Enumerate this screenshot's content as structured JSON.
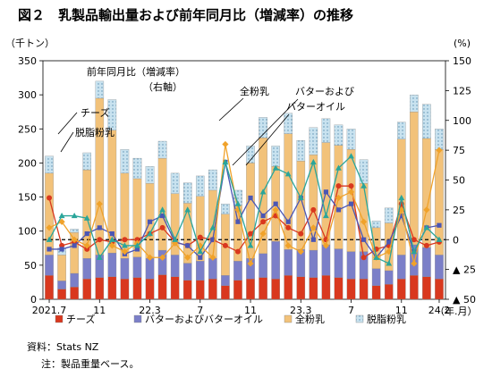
{
  "title": "図２　乳製品輸出量および前年同月比（増減率）の推移",
  "left_unit": "（千トン）",
  "right_unit": "(%)",
  "x_unit": "（年.月）",
  "source": "資料：Stats NZ",
  "note": "注：製品重量ベース。",
  "annotations": {
    "yoy_line1": "前年同月比（増減率）",
    "yoy_line2": "（右軸）",
    "cheese": "チーズ",
    "skim": "脱脂粉乳",
    "whole": "全粉乳",
    "butter1": "バターおよび",
    "butter2": "バターオイル"
  },
  "chart_data": {
    "type": "bar",
    "stacked": true,
    "categories": [
      "2021.7",
      "2021.8",
      "2021.9",
      "2021.10",
      "2021.11",
      "2021.12",
      "2022.1",
      "2022.2",
      "2022.3",
      "2022.4",
      "2022.5",
      "2022.6",
      "2022.7",
      "2022.8",
      "2022.9",
      "2022.10",
      "2022.11",
      "2022.12",
      "2023.1",
      "2023.2",
      "2023.3",
      "2023.4",
      "2023.5",
      "2023.6",
      "2023.7",
      "2023.8",
      "2023.9",
      "2023.10",
      "2023.11",
      "2023.12",
      "2024.1",
      "2024.2"
    ],
    "x_tick_labels": {
      "0": "2021.7",
      "4": "11",
      "8": "22.3",
      "12": "7",
      "16": "11",
      "20": "23.3",
      "24": "7",
      "28": "11",
      "31": "24.2"
    },
    "ylim": [
      0,
      350
    ],
    "yticks": [
      0,
      50,
      100,
      150,
      200,
      250,
      300,
      350
    ],
    "y2lim": [
      -50,
      150
    ],
    "y2ticks": [
      150,
      125,
      100,
      75,
      50,
      25,
      0,
      -25,
      -50
    ],
    "y2tick_labels": [
      "150",
      "125",
      "100",
      "75",
      "50",
      "25",
      "0",
      "▲ 25",
      "▲ 50"
    ],
    "series": [
      {
        "name": "チーズ",
        "color": "#d9381e",
        "values": [
          35,
          15,
          18,
          30,
          32,
          33,
          30,
          32,
          30,
          36,
          33,
          28,
          28,
          30,
          20,
          28,
          30,
          32,
          30,
          35,
          33,
          32,
          35,
          32,
          30,
          30,
          20,
          22,
          30,
          35,
          33,
          30
        ]
      },
      {
        "name": "バターおよびバターオイル",
        "color": "#7b7fc8",
        "values": [
          30,
          12,
          20,
          30,
          33,
          35,
          30,
          30,
          30,
          36,
          32,
          25,
          28,
          30,
          15,
          28,
          30,
          35,
          55,
          38,
          40,
          40,
          45,
          42,
          40,
          40,
          25,
          20,
          35,
          45,
          43,
          35
        ]
      },
      {
        "name": "全粉乳",
        "color": "#f2c27a",
        "values": [
          120,
          38,
          60,
          130,
          230,
          180,
          125,
          115,
          110,
          135,
          90,
          88,
          95,
          100,
          90,
          82,
          140,
          170,
          110,
          170,
          130,
          140,
          150,
          152,
          150,
          100,
          60,
          70,
          170,
          195,
          160,
          155
        ]
      },
      {
        "name": "脱脂粉乳",
        "color": "#c8e2ef",
        "values": [
          25,
          10,
          5,
          25,
          25,
          45,
          35,
          30,
          25,
          25,
          30,
          30,
          30,
          30,
          15,
          22,
          25,
          30,
          30,
          30,
          30,
          40,
          35,
          30,
          30,
          35,
          10,
          22,
          25,
          25,
          50,
          30
        ]
      }
    ],
    "yoy": [
      {
        "name": "チーズ",
        "color": "#d9381e",
        "values": [
          35,
          -5,
          -2,
          -8,
          0,
          -2,
          0,
          0,
          5,
          10,
          -2,
          -5,
          2,
          0,
          -5,
          -10,
          5,
          15,
          20,
          10,
          5,
          25,
          0,
          45,
          45,
          -15,
          -8,
          -5,
          30,
          0,
          -5,
          -2
        ]
      },
      {
        "name": "バターおよびバターオイル",
        "color": "#4b56b4",
        "values": [
          -8,
          -8,
          -5,
          5,
          10,
          5,
          -12,
          -8,
          15,
          20,
          -2,
          -5,
          -15,
          0,
          65,
          15,
          35,
          20,
          30,
          15,
          35,
          0,
          40,
          25,
          30,
          0,
          -15,
          -2,
          20,
          -10,
          10,
          12
        ]
      },
      {
        "name": "全粉乳",
        "color": "#f0a22a",
        "values": [
          10,
          15,
          0,
          -5,
          30,
          -5,
          -10,
          -3,
          -15,
          -15,
          -3,
          -15,
          -5,
          -15,
          80,
          25,
          -20,
          5,
          25,
          -5,
          -10,
          10,
          -5,
          35,
          40,
          15,
          -15,
          -10,
          25,
          -20,
          25,
          75
        ]
      },
      {
        "name": "脱脂粉乳",
        "color": "#2aa59a",
        "values": [
          0,
          20,
          20,
          18,
          -15,
          0,
          -5,
          -5,
          5,
          25,
          0,
          25,
          -10,
          10,
          65,
          30,
          -5,
          40,
          60,
          55,
          35,
          65,
          20,
          60,
          70,
          45,
          -15,
          -20,
          35,
          -10,
          10,
          0
        ]
      }
    ]
  }
}
